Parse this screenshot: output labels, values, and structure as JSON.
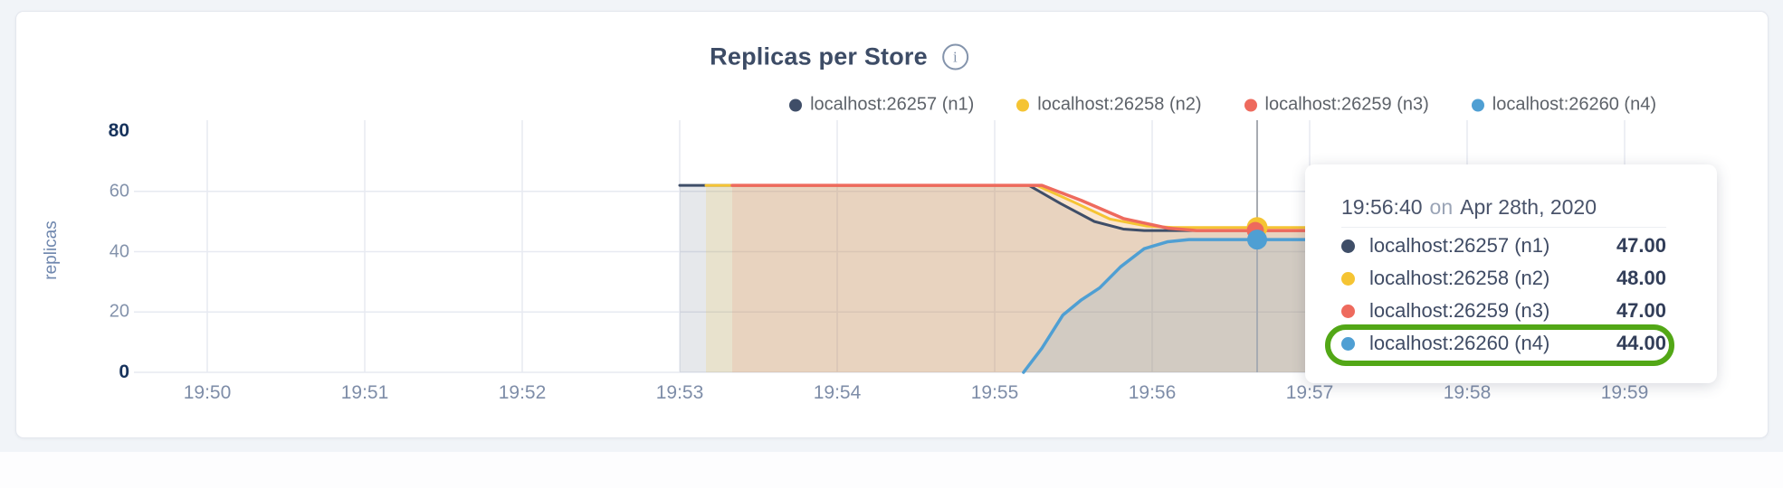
{
  "page": {
    "background": "#f1f4f8",
    "card_background": "#ffffff"
  },
  "header": {
    "title": "Replicas per Store",
    "info_glyph": "i"
  },
  "tooltip": {
    "time": "19:56:40",
    "conj": "on",
    "date": "Apr 28th, 2020",
    "rows": [
      {
        "label": "localhost:26257 (n1)",
        "value": "47.00",
        "series_index": 0,
        "highlighted": false
      },
      {
        "label": "localhost:26258 (n2)",
        "value": "48.00",
        "series_index": 1,
        "highlighted": false
      },
      {
        "label": "localhost:26259 (n3)",
        "value": "47.00",
        "series_index": 2,
        "highlighted": false
      },
      {
        "label": "localhost:26260 (n4)",
        "value": "44.00",
        "series_index": 3,
        "highlighted": true
      }
    ],
    "highlight_color": "#52a716"
  },
  "chart_data": {
    "type": "area",
    "title": "Replicas per Store",
    "xlabel": "",
    "ylabel": "replicas",
    "ylim": [
      0,
      80
    ],
    "grid": true,
    "grid_color": "#e7eaf1",
    "hover_line_color": "#a7abb2",
    "legend_position": "top-right",
    "x_ticks": [
      "19:50",
      "19:51",
      "19:52",
      "19:53",
      "19:54",
      "19:55",
      "19:56",
      "19:57",
      "19:58",
      "19:59"
    ],
    "y_ticks": [
      {
        "label": "80",
        "value": 80,
        "bold": true
      },
      {
        "label": "60",
        "value": 60,
        "bold": false
      },
      {
        "label": "40",
        "value": 40,
        "bold": false
      },
      {
        "label": "20",
        "value": 20,
        "bold": false
      },
      {
        "label": "0",
        "value": 0,
        "bold": true
      }
    ],
    "y_grid_values": [
      60,
      40,
      20,
      0
    ],
    "x_unit": "seconds since 19:50:00",
    "series": [
      {
        "name": "localhost:26257 (n1)",
        "color": "#3f4e68",
        "fill_opacity": 0.13,
        "stroke_width": 3,
        "points": [
          [
            180,
            62
          ],
          [
            313,
            62
          ],
          [
            325,
            56
          ],
          [
            338,
            50
          ],
          [
            349,
            47.5
          ],
          [
            357,
            47
          ],
          [
            570,
            47
          ]
        ]
      },
      {
        "name": "localhost:26258 (n2)",
        "color": "#f5c433",
        "fill_opacity": 0.16,
        "stroke_width": 3,
        "points": [
          [
            190,
            62
          ],
          [
            316,
            62
          ],
          [
            330,
            56.5
          ],
          [
            344,
            50.8
          ],
          [
            358,
            48.5
          ],
          [
            368,
            48
          ],
          [
            570,
            48
          ]
        ]
      },
      {
        "name": "localhost:26259 (n3)",
        "color": "#ee6a5d",
        "fill_opacity": 0.12,
        "stroke_width": 3.5,
        "points": [
          [
            200,
            62
          ],
          [
            318,
            62
          ],
          [
            333,
            57
          ],
          [
            349,
            51
          ],
          [
            366,
            47.8
          ],
          [
            377,
            47
          ],
          [
            570,
            47
          ]
        ]
      },
      {
        "name": "localhost:26260 (n4)",
        "color": "#4f9fd3",
        "fill_opacity": 0.14,
        "stroke_width": 3.5,
        "points": [
          [
            311,
            0
          ],
          [
            318,
            8
          ],
          [
            326,
            19
          ],
          [
            333,
            24
          ],
          [
            340,
            28
          ],
          [
            348,
            35
          ],
          [
            357,
            41
          ],
          [
            366,
            43.3
          ],
          [
            374,
            44
          ],
          [
            570,
            44
          ]
        ]
      }
    ],
    "hover": {
      "t": 400,
      "time": "19:56:40",
      "values": [
        47,
        48,
        47,
        44
      ],
      "dots": [
        {
          "series": 1,
          "value": 48,
          "r": 11.5,
          "dx": 0
        },
        {
          "series": 2,
          "value": 47,
          "r": 9.5,
          "dx": -2
        },
        {
          "series": 3,
          "value": 44,
          "r": 11,
          "dx": 0
        }
      ]
    }
  }
}
